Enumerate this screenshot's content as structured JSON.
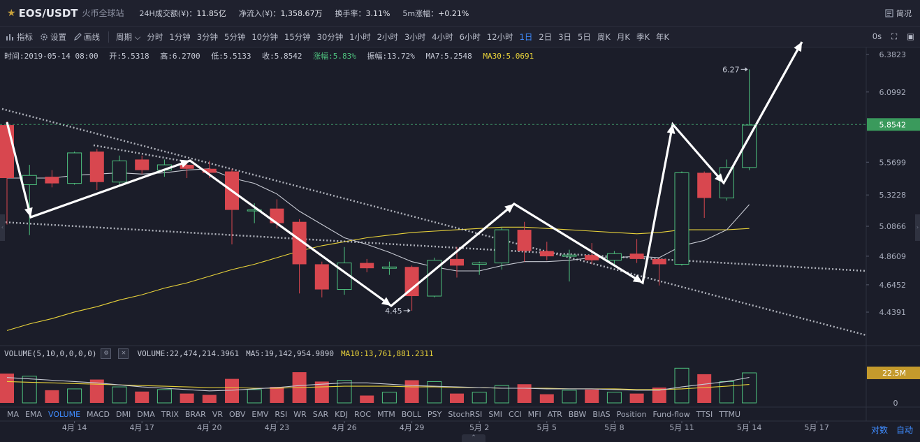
{
  "header": {
    "pair": "EOS/USDT",
    "venue": "火币全球站",
    "stats": [
      {
        "label": "24H成交额(¥)：",
        "value": "11.85亿",
        "tone": "normal"
      },
      {
        "label": "净流入(¥)：",
        "value": "1,358.67万",
        "tone": "green"
      },
      {
        "label": "换手率：",
        "value": "3.11%",
        "tone": "normal"
      },
      {
        "label": "5m涨幅：",
        "value": "+0.21%",
        "tone": "green"
      }
    ],
    "simple_label": "简况"
  },
  "toolbar": {
    "tools": [
      {
        "icon": "indicator-icon",
        "label": "指标"
      },
      {
        "icon": "gear-icon",
        "label": "设置"
      },
      {
        "icon": "pencil-icon",
        "label": "画线"
      }
    ],
    "period_label": "周期",
    "periods": [
      "分时",
      "1分钟",
      "3分钟",
      "5分钟",
      "10分钟",
      "15分钟",
      "30分钟",
      "1小时",
      "2小时",
      "3小时",
      "4小时",
      "6小时",
      "12小时",
      "1日",
      "2日",
      "3日",
      "5日",
      "周K",
      "月K",
      "季K",
      "年K"
    ],
    "active_period": "1日",
    "right": [
      "0s"
    ]
  },
  "info": {
    "time": "时间:2019-05-14 08:00",
    "open": "开:5.5318",
    "high": "高:6.2700",
    "low": "低:5.5133",
    "close": "收:5.8542",
    "change": "涨幅:5.83%",
    "amplitude": "振幅:13.72%",
    "ma7": "MA7:5.2548",
    "ma30": "MA30:5.0691"
  },
  "volume_info": {
    "title": "VOLUME(5,10,0,0,0,0)",
    "volume": "VOLUME:22,474,214.3961",
    "ma5": "MA5:19,142,954.9890",
    "ma10": "MA10:13,761,881.2311"
  },
  "indicators": [
    "MA",
    "EMA",
    "VOLUME",
    "MACD",
    "DMI",
    "DMA",
    "TRIX",
    "BRAR",
    "VR",
    "OBV",
    "EMV",
    "RSI",
    "WR",
    "SAR",
    "KDJ",
    "ROC",
    "MTM",
    "BOLL",
    "PSY",
    "StochRSI",
    "SMI",
    "CCI",
    "MFI",
    "ATR",
    "BBW",
    "BIAS",
    "Position",
    "Fund-flow",
    "TTSI",
    "TTMU"
  ],
  "active_indicator": "VOLUME",
  "footer": {
    "log_label": "对数",
    "auto_label": "自动"
  },
  "colors": {
    "up": "#4ec17e",
    "down": "#d8474f",
    "ma7": "#c8cbd4",
    "ma30": "#e8d23a",
    "accent": "#3f8cff"
  },
  "chart_data": {
    "type": "candlestick",
    "price_ticks": [
      "6.3823",
      "6.0992",
      "5.8542",
      "5.5699",
      "5.3228",
      "5.0866",
      "4.8609",
      "4.6452",
      "4.4391"
    ],
    "current_price": "5.8542",
    "volume_ticks": [
      "22.5M",
      "0"
    ],
    "x_labels": [
      "4月 14",
      "4月 17",
      "4月 20",
      "4月 23",
      "4月 26",
      "4月 29",
      "5月 2",
      "5月 5",
      "5月 8",
      "5月 11",
      "5月 14",
      "5月 17"
    ],
    "annotations": {
      "high": "6.27",
      "low": "4.45"
    },
    "candles": [
      {
        "o": 5.85,
        "h": 5.88,
        "l": 5.1,
        "c": 5.45,
        "v": 22.0
      },
      {
        "o": 5.4,
        "h": 5.55,
        "l": 5.02,
        "c": 5.47,
        "v": 20.0
      },
      {
        "o": 5.46,
        "h": 5.51,
        "l": 5.38,
        "c": 5.41,
        "v": 9.5
      },
      {
        "o": 5.41,
        "h": 5.65,
        "l": 5.4,
        "c": 5.64,
        "v": 10.5
      },
      {
        "o": 5.65,
        "h": 5.67,
        "l": 5.36,
        "c": 5.42,
        "v": 17.5
      },
      {
        "o": 5.42,
        "h": 5.62,
        "l": 5.4,
        "c": 5.58,
        "v": 12.0
      },
      {
        "o": 5.59,
        "h": 5.62,
        "l": 5.48,
        "c": 5.51,
        "v": 8.5
      },
      {
        "o": 5.51,
        "h": 5.59,
        "l": 5.46,
        "c": 5.55,
        "v": 10.0
      },
      {
        "o": 5.55,
        "h": 5.57,
        "l": 5.45,
        "c": 5.52,
        "v": 7.0
      },
      {
        "o": 5.52,
        "h": 5.58,
        "l": 5.45,
        "c": 5.49,
        "v": 6.0
      },
      {
        "o": 5.5,
        "h": 5.52,
        "l": 4.95,
        "c": 5.21,
        "v": 18.0
      },
      {
        "o": 5.21,
        "h": 5.26,
        "l": 5.11,
        "c": 5.21,
        "v": 10.0
      },
      {
        "o": 5.22,
        "h": 5.29,
        "l": 5.07,
        "c": 5.11,
        "v": 12.0
      },
      {
        "o": 5.12,
        "h": 5.14,
        "l": 4.58,
        "c": 4.8,
        "v": 23.0
      },
      {
        "o": 4.8,
        "h": 4.82,
        "l": 4.55,
        "c": 4.61,
        "v": 16.0
      },
      {
        "o": 4.61,
        "h": 4.93,
        "l": 4.57,
        "c": 4.81,
        "v": 17.0
      },
      {
        "o": 4.81,
        "h": 4.84,
        "l": 4.74,
        "c": 4.77,
        "v": 5.5
      },
      {
        "o": 4.77,
        "h": 4.82,
        "l": 4.72,
        "c": 4.78,
        "v": 8.0
      },
      {
        "o": 4.78,
        "h": 4.79,
        "l": 4.45,
        "c": 4.56,
        "v": 17.0
      },
      {
        "o": 4.56,
        "h": 4.85,
        "l": 4.55,
        "c": 4.83,
        "v": 16.0
      },
      {
        "o": 4.84,
        "h": 4.93,
        "l": 4.7,
        "c": 4.79,
        "v": 7.0
      },
      {
        "o": 4.8,
        "h": 4.82,
        "l": 4.72,
        "c": 4.81,
        "v": 8.0
      },
      {
        "o": 4.81,
        "h": 5.08,
        "l": 4.76,
        "c": 5.06,
        "v": 13.0
      },
      {
        "o": 5.06,
        "h": 5.12,
        "l": 4.82,
        "c": 4.9,
        "v": 14.0
      },
      {
        "o": 4.9,
        "h": 4.97,
        "l": 4.83,
        "c": 4.86,
        "v": 6.5
      },
      {
        "o": 4.86,
        "h": 4.91,
        "l": 4.67,
        "c": 4.87,
        "v": 9.5
      },
      {
        "o": 4.87,
        "h": 4.96,
        "l": 4.8,
        "c": 4.83,
        "v": 10.0
      },
      {
        "o": 4.83,
        "h": 4.9,
        "l": 4.79,
        "c": 4.88,
        "v": 8.0
      },
      {
        "o": 4.88,
        "h": 4.99,
        "l": 4.81,
        "c": 4.84,
        "v": 7.0
      },
      {
        "o": 4.84,
        "h": 4.85,
        "l": 4.64,
        "c": 4.8,
        "v": 11.5
      },
      {
        "o": 4.8,
        "h": 5.5,
        "l": 4.79,
        "c": 5.49,
        "v": 26.0
      },
      {
        "o": 5.49,
        "h": 5.5,
        "l": 5.15,
        "c": 5.3,
        "v": 21.5
      },
      {
        "o": 5.3,
        "h": 5.59,
        "l": 5.28,
        "c": 5.53,
        "v": 16.0
      },
      {
        "o": 5.53,
        "h": 6.27,
        "l": 5.51,
        "c": 5.85,
        "v": 22.5
      }
    ],
    "ma7": [
      5.45,
      5.45,
      5.45,
      5.47,
      5.48,
      5.49,
      5.48,
      5.49,
      5.51,
      5.52,
      5.45,
      5.41,
      5.33,
      5.2,
      5.1,
      5.0,
      4.95,
      4.89,
      4.82,
      4.78,
      4.75,
      4.75,
      4.79,
      4.82,
      4.82,
      4.83,
      4.85,
      4.85,
      4.86,
      4.85,
      4.94,
      4.98,
      5.06,
      5.25
    ],
    "ma30": [
      4.3,
      4.35,
      4.39,
      4.44,
      4.48,
      4.53,
      4.57,
      4.62,
      4.66,
      4.71,
      4.76,
      4.8,
      4.85,
      4.9,
      4.94,
      4.97,
      5.0,
      5.02,
      5.04,
      5.05,
      5.06,
      5.07,
      5.08,
      5.08,
      5.07,
      5.06,
      5.05,
      5.04,
      5.03,
      5.04,
      5.06,
      5.06,
      5.06,
      5.07
    ],
    "vol_ma5": [
      19.0,
      18.0,
      17.0,
      16.0,
      15.0,
      13.5,
      12.0,
      11.0,
      10.0,
      9.0,
      9.5,
      10.5,
      11.5,
      13.0,
      14.0,
      15.0,
      15.0,
      14.0,
      13.0,
      12.5,
      12.0,
      11.5,
      11.0,
      11.0,
      10.5,
      10.5,
      10.5,
      10.0,
      9.5,
      9.5,
      12.0,
      14.0,
      16.0,
      19.1
    ],
    "vol_ma10": [
      16.0,
      15.5,
      15.0,
      14.5,
      14.0,
      13.5,
      13.0,
      12.5,
      12.0,
      11.5,
      11.5,
      11.0,
      11.0,
      11.5,
      12.0,
      12.5,
      12.5,
      12.5,
      12.0,
      12.0,
      11.5,
      11.5,
      11.0,
      11.0,
      11.0,
      10.5,
      10.5,
      10.5,
      10.0,
      10.0,
      10.5,
      11.5,
      12.5,
      13.8
    ]
  }
}
